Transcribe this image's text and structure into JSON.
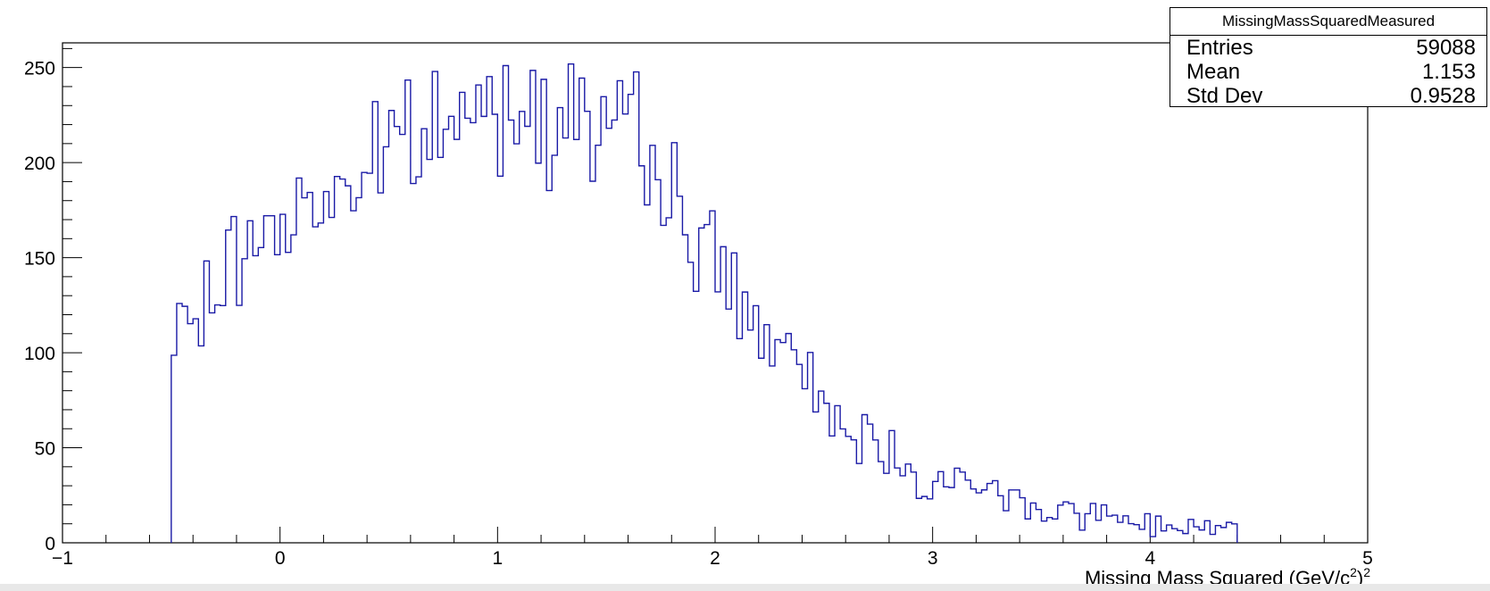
{
  "chart_data": {
    "type": "histogram",
    "title": "",
    "xlabel": "Missing Mass Squared  (GeV/c",
    "xlabel_sup1": "2",
    "xlabel_close": ")",
    "xlabel_sup2": "2",
    "ylabel": "",
    "xlim": [
      -1,
      5
    ],
    "ylim": [
      0,
      263
    ],
    "x_ticks": [
      -1,
      0,
      1,
      2,
      3,
      4,
      5
    ],
    "x_tick_labels": [
      "−1",
      "0",
      "1",
      "2",
      "3",
      "4",
      "5"
    ],
    "y_ticks": [
      0,
      50,
      100,
      150,
      200,
      250
    ],
    "y_tick_labels": [
      "0",
      "50",
      "100",
      "150",
      "200",
      "250"
    ],
    "line_color": "#1a1aa6",
    "grid": false,
    "bin_range": [
      -0.5,
      4.4
    ],
    "bin_count": 196,
    "profile": [
      [
        -0.5,
        95
      ],
      [
        -0.45,
        115
      ],
      [
        -0.35,
        122
      ],
      [
        -0.2,
        150
      ],
      [
        0,
        170
      ],
      [
        0.2,
        182
      ],
      [
        0.4,
        195
      ],
      [
        0.6,
        212
      ],
      [
        0.8,
        220
      ],
      [
        1.0,
        230
      ],
      [
        1.2,
        234
      ],
      [
        1.4,
        226
      ],
      [
        1.6,
        212
      ],
      [
        1.75,
        195
      ],
      [
        1.9,
        162
      ],
      [
        2.0,
        148
      ],
      [
        2.1,
        130
      ],
      [
        2.2,
        115
      ],
      [
        2.3,
        98
      ],
      [
        2.4,
        85
      ],
      [
        2.5,
        72
      ],
      [
        2.6,
        62
      ],
      [
        2.7,
        55
      ],
      [
        2.8,
        48
      ],
      [
        2.9,
        40
      ],
      [
        3.0,
        34
      ],
      [
        3.2,
        28
      ],
      [
        3.4,
        22
      ],
      [
        3.6,
        17
      ],
      [
        3.8,
        14
      ],
      [
        4.0,
        11
      ],
      [
        4.2,
        9
      ],
      [
        4.4,
        7
      ]
    ],
    "noise_seed": 7,
    "stats": {
      "title": "MissingMassSquaredMeasured",
      "rows": [
        {
          "label": "Entries",
          "value": "59088"
        },
        {
          "label": "Mean",
          "value": "1.153"
        },
        {
          "label": "Std Dev",
          "value": "0.9528"
        }
      ]
    }
  }
}
